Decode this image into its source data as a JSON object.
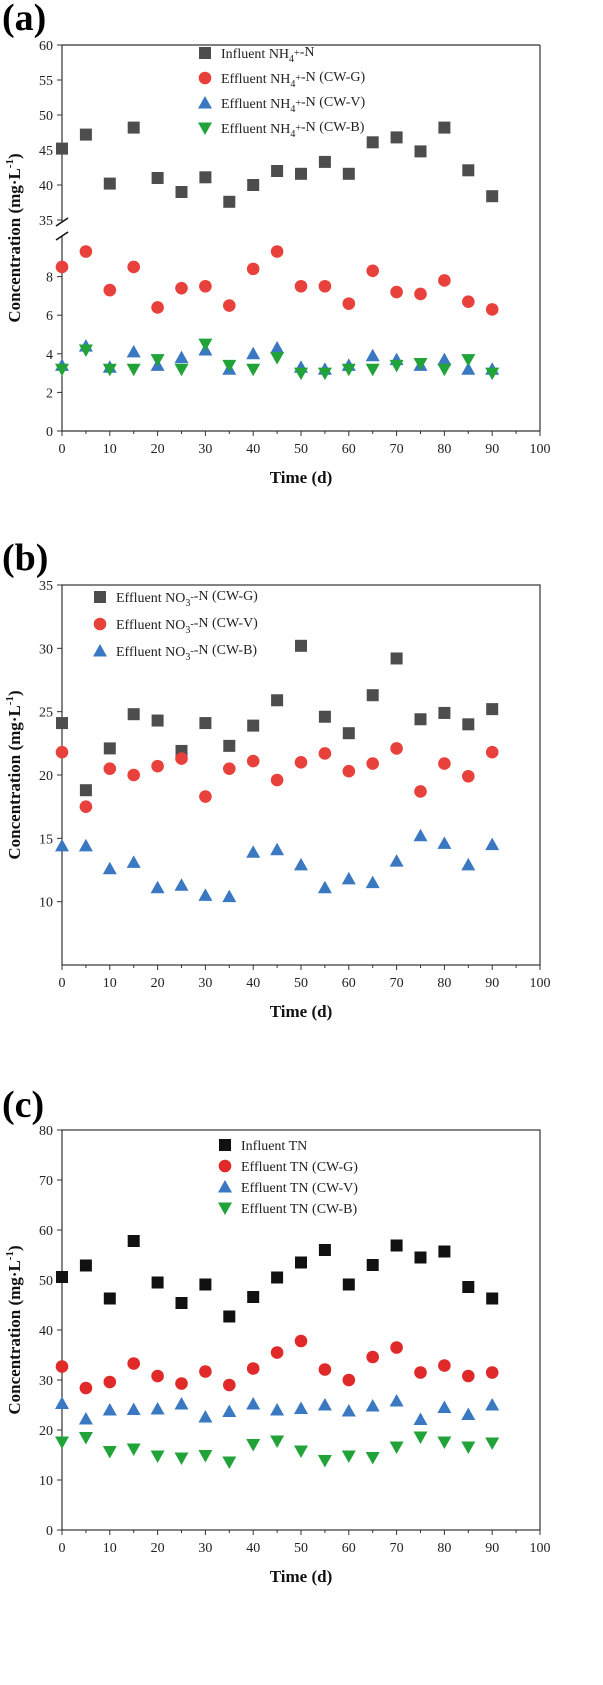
{
  "chart_data": [
    {
      "panel": "(a)",
      "type": "scatter",
      "xlabel": "Time (d)",
      "ylabel": "Concentration (mg·L⁻¹)",
      "xlim": [
        0,
        100
      ],
      "xticks": [
        "0",
        "10",
        "20",
        "30",
        "40",
        "50",
        "60",
        "70",
        "80",
        "90",
        "100"
      ],
      "ylim": [
        0,
        60
      ],
      "axis_break": [
        10,
        35
      ],
      "yticks": [
        "0",
        "2",
        "4",
        "6",
        "8",
        "35",
        "40",
        "45",
        "50",
        "55",
        "60"
      ],
      "x": [
        0,
        5,
        10,
        15,
        20,
        25,
        30,
        35,
        40,
        45,
        50,
        55,
        60,
        65,
        70,
        75,
        80,
        85,
        90
      ],
      "series": [
        {
          "name": "Influent NH₄⁺-N",
          "marker": "square",
          "color": "#4d4d4d",
          "values": [
            45.2,
            47.2,
            40.2,
            48.2,
            41,
            39,
            41.1,
            37.6,
            40,
            42,
            41.6,
            43.3,
            41.6,
            46.1,
            46.8,
            44.8,
            48.2,
            42.1,
            38.4
          ]
        },
        {
          "name": "Effluent NH₄⁺-N (CW-G)",
          "marker": "circle",
          "color": "#e8413c",
          "values": [
            8.5,
            9.3,
            7.3,
            8.5,
            6.4,
            7.4,
            7.5,
            6.5,
            8.4,
            9.3,
            7.5,
            7.5,
            6.6,
            8.3,
            7.2,
            7.1,
            7.8,
            6.7,
            6.3
          ]
        },
        {
          "name": "Effluent NH₄⁺-N (CW-V)",
          "marker": "triangle-up",
          "color": "#3a78c2",
          "values": [
            3.4,
            4.4,
            3.3,
            4.1,
            3.4,
            3.8,
            4.2,
            3.2,
            4,
            4.3,
            3.3,
            3.2,
            3.4,
            3.9,
            3.7,
            3.4,
            3.7,
            3.2,
            3.2
          ]
        },
        {
          "name": "Effluent NH₄⁺-N (CW-B)",
          "marker": "triangle-down",
          "color": "#21a33a",
          "values": [
            3.2,
            4.2,
            3.2,
            3.2,
            3.7,
            3.2,
            4.5,
            3.4,
            3.2,
            3.8,
            3,
            3,
            3.2,
            3.2,
            3.4,
            3.5,
            3.2,
            3.7,
            3
          ]
        }
      ]
    },
    {
      "panel": "(b)",
      "type": "scatter",
      "xlabel": "Time (d)",
      "ylabel": "Concentration (mg·L⁻¹)",
      "xlim": [
        0,
        100
      ],
      "xticks": [
        "0",
        "10",
        "20",
        "30",
        "40",
        "50",
        "60",
        "70",
        "80",
        "90",
        "100"
      ],
      "ylim": [
        5,
        35
      ],
      "yticks": [
        "10",
        "15",
        "20",
        "25",
        "30",
        "35"
      ],
      "x": [
        0,
        5,
        10,
        15,
        20,
        25,
        30,
        35,
        40,
        45,
        50,
        55,
        60,
        65,
        70,
        75,
        80,
        85,
        90
      ],
      "series": [
        {
          "name": "Effluent NO₃⁻-N (CW-G)",
          "marker": "square",
          "color": "#4d4d4d",
          "values": [
            24.1,
            18.8,
            22.1,
            24.8,
            24.3,
            21.9,
            24.1,
            22.3,
            23.9,
            25.9,
            30.2,
            24.6,
            23.3,
            26.3,
            29.2,
            24.4,
            24.9,
            24,
            25.2
          ]
        },
        {
          "name": "Effluent NO₃⁻-N (CW-V)",
          "marker": "circle",
          "color": "#e8413c",
          "values": [
            21.8,
            17.5,
            20.5,
            20,
            20.7,
            21.3,
            18.3,
            20.5,
            21.1,
            19.6,
            21,
            21.7,
            20.3,
            20.9,
            22.1,
            18.7,
            20.9,
            19.9,
            21.8
          ]
        },
        {
          "name": "Effluent NO₃⁻-N (CW-B)",
          "marker": "triangle-up",
          "color": "#3a78c2",
          "values": [
            14.4,
            14.4,
            12.6,
            13.1,
            11.1,
            11.3,
            10.5,
            10.4,
            13.9,
            14.1,
            12.9,
            11.1,
            11.8,
            11.5,
            13.2,
            15.2,
            14.6,
            12.9,
            14.5
          ]
        }
      ]
    },
    {
      "panel": "(c)",
      "type": "scatter",
      "xlabel": "Time (d)",
      "ylabel": "Concentration (mg·L⁻¹)",
      "xlim": [
        0,
        100
      ],
      "xticks": [
        "0",
        "10",
        "20",
        "30",
        "40",
        "50",
        "60",
        "70",
        "80",
        "90",
        "100"
      ],
      "ylim": [
        0,
        80
      ],
      "yticks": [
        "0",
        "10",
        "20",
        "30",
        "40",
        "50",
        "60",
        "70",
        "80"
      ],
      "x": [
        0,
        5,
        10,
        15,
        20,
        25,
        30,
        35,
        40,
        45,
        50,
        55,
        60,
        65,
        70,
        75,
        80,
        85,
        90
      ],
      "series": [
        {
          "name": "Influent TN",
          "marker": "square",
          "color": "#111111",
          "values": [
            50.6,
            52.9,
            46.3,
            57.8,
            49.5,
            45.4,
            49.1,
            42.7,
            46.6,
            50.5,
            53.5,
            56,
            49.1,
            53,
            56.9,
            54.5,
            55.7,
            48.6,
            46.3
          ]
        },
        {
          "name": "Effluent TN (CW-G)",
          "marker": "circle",
          "color": "#e02a2a",
          "values": [
            32.7,
            28.4,
            29.6,
            33.3,
            30.8,
            29.3,
            31.7,
            29,
            32.3,
            35.5,
            37.8,
            32.1,
            30,
            34.6,
            36.5,
            31.5,
            32.9,
            30.8,
            31.5
          ]
        },
        {
          "name": "Effluent TN (CW-V)",
          "marker": "triangle-up",
          "color": "#3a78c2",
          "values": [
            25.3,
            22.2,
            24,
            24.1,
            24.2,
            25.2,
            22.6,
            23.7,
            25.2,
            24,
            24.3,
            25,
            23.8,
            24.8,
            25.8,
            22.1,
            24.5,
            23.1,
            25
          ]
        },
        {
          "name": "Effluent TN (CW-B)",
          "marker": "triangle-down",
          "color": "#21a33a",
          "values": [
            17.6,
            18.5,
            15.7,
            16.2,
            14.8,
            14.4,
            14.9,
            13.6,
            17.1,
            17.8,
            15.8,
            13.9,
            14.8,
            14.5,
            16.6,
            18.6,
            17.6,
            16.6,
            17.4
          ]
        }
      ]
    }
  ]
}
